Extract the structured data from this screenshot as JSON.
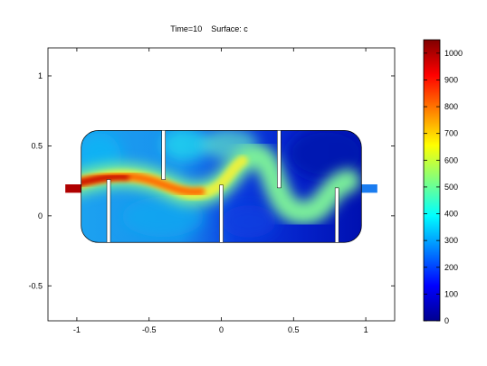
{
  "chart_data": {
    "type": "heatmap",
    "title": "Time=10    Surface: c",
    "title_time": "Time=10",
    "title_surface": "Surface: c",
    "xlabel": "",
    "ylabel": "",
    "xlim": [
      -1.2,
      1.2
    ],
    "ylim": [
      -0.75,
      1.2
    ],
    "x_ticks": [
      -1,
      -0.5,
      0,
      0.5,
      1
    ],
    "x_tick_labels": [
      "-1",
      "-0.5",
      "0",
      "0.5",
      "1"
    ],
    "y_ticks": [
      -0.5,
      0,
      0.5,
      1
    ],
    "y_tick_labels": [
      "-0.5",
      "0",
      "0.5",
      "1"
    ],
    "colorbar": {
      "min": 0,
      "max": 1050,
      "ticks": [
        0,
        100,
        200,
        300,
        400,
        500,
        600,
        700,
        800,
        900,
        1000
      ],
      "tick_labels": [
        "0",
        "100",
        "200",
        "300",
        "400",
        "500",
        "600",
        "700",
        "800",
        "900",
        "1000"
      ],
      "colormap": "jet"
    },
    "grid": false,
    "legend": "none"
  }
}
